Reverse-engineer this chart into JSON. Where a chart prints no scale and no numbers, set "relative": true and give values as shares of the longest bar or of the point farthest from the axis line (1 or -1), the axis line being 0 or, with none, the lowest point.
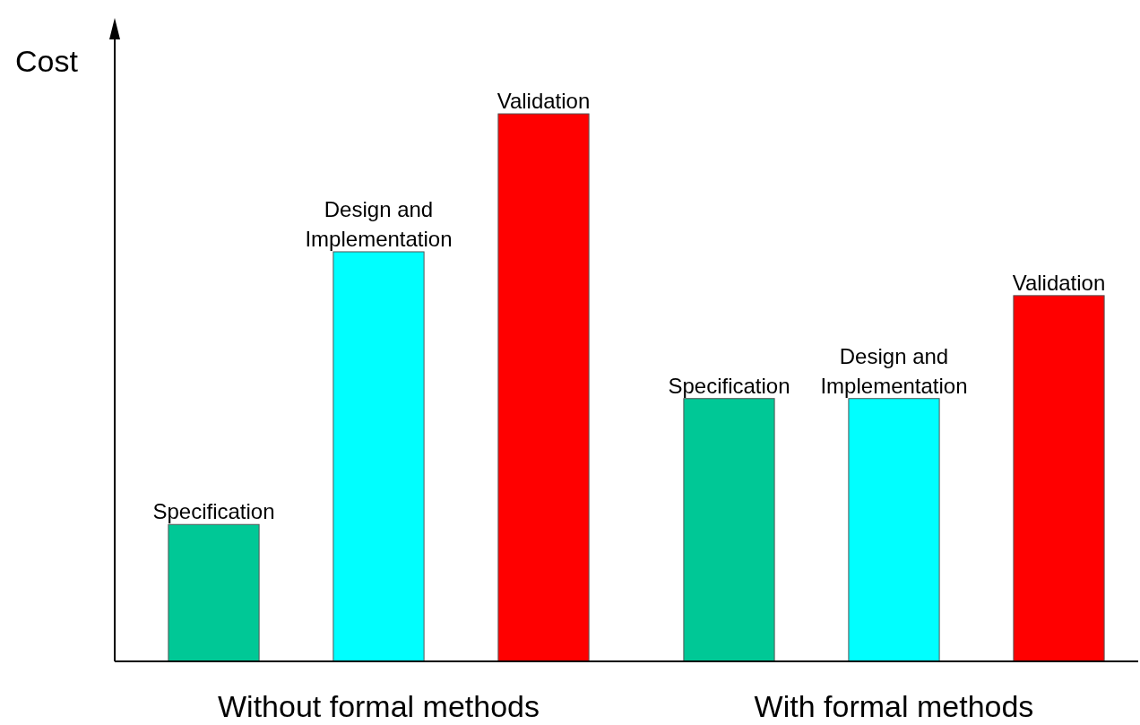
{
  "chart_data": {
    "type": "bar",
    "relative": true,
    "ylabel": "Cost",
    "categories": [
      "Without formal methods",
      "With formal methods"
    ],
    "series": [
      {
        "name": "Specification",
        "color": "#00c896",
        "values": [
          0.25,
          0.48
        ]
      },
      {
        "name": "Design and Implementation",
        "color": "#00ffff",
        "values": [
          0.748,
          0.48
        ]
      },
      {
        "name": "Validation",
        "color": "#ff0000",
        "values": [
          1,
          0.668
        ]
      }
    ]
  }
}
